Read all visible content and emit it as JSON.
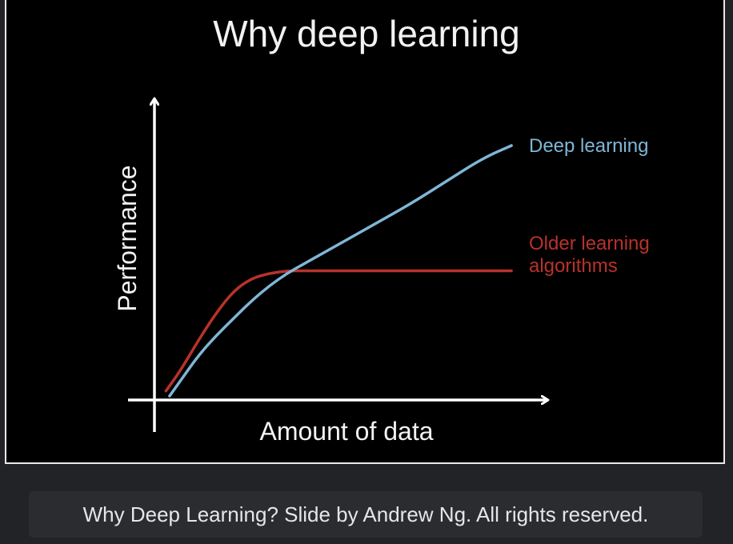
{
  "caption": "Why Deep Learning? Slide by Andrew Ng. All rights reserved.",
  "colors": {
    "background": "#000000",
    "axes": "#ffffff",
    "deep_learning": "#7fb6d6",
    "older_algorithms": "#b8322b"
  },
  "chart_data": {
    "type": "line",
    "title": "Why deep learning",
    "xlabel": "Amount of data",
    "ylabel": "Performance",
    "xlim": [
      0,
      1
    ],
    "ylim": [
      0,
      1
    ],
    "grid": false,
    "series": [
      {
        "name": "Deep learning",
        "color": "#7fb6d6",
        "x": [
          0.02,
          0.05,
          0.1,
          0.15,
          0.2,
          0.25,
          0.3,
          0.35,
          0.4,
          0.5,
          0.6,
          0.7,
          0.8,
          0.9,
          0.98
        ],
        "y": [
          0.0,
          0.06,
          0.16,
          0.24,
          0.31,
          0.38,
          0.44,
          0.49,
          0.53,
          0.61,
          0.69,
          0.77,
          0.86,
          0.95,
          1.0
        ]
      },
      {
        "name": "Older learning algorithms",
        "color": "#b8322b",
        "x": [
          0.01,
          0.05,
          0.1,
          0.15,
          0.2,
          0.25,
          0.3,
          0.35,
          0.4,
          0.5,
          0.6,
          0.7,
          0.8,
          0.9,
          0.98
        ],
        "y": [
          0.02,
          0.1,
          0.22,
          0.33,
          0.42,
          0.47,
          0.49,
          0.5,
          0.5,
          0.5,
          0.5,
          0.5,
          0.5,
          0.5,
          0.5
        ]
      }
    ],
    "legend_labels": [
      {
        "lines": [
          "Deep learning"
        ]
      },
      {
        "lines": [
          "Older learning",
          "algorithms"
        ]
      }
    ]
  }
}
